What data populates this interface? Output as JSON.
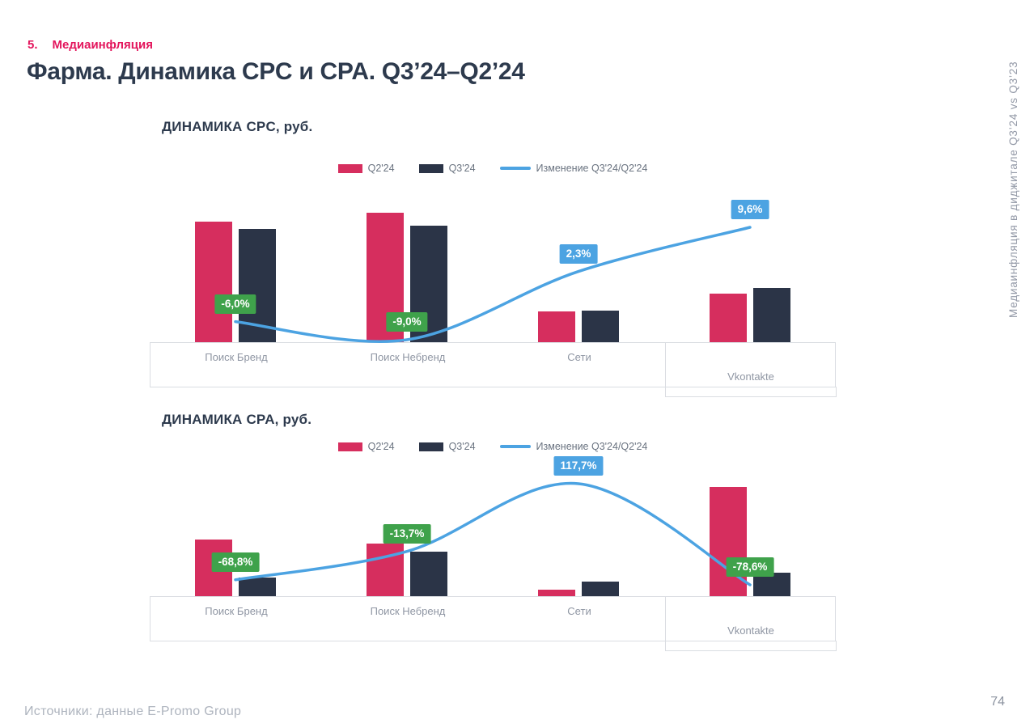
{
  "page": {
    "section_number": "5.",
    "section_title": "Медиаинфляция",
    "title": "Фарма. Динамика CPC и CPA. Q3’24–Q2’24",
    "side_note": "Медиаинфляция в диджитале Q3’24 vs Q3’23",
    "footer_source": "Источники: данные E-Promo Group",
    "page_number": "74"
  },
  "colors": {
    "accent_pink": "#D62E5E",
    "dark_navy": "#2B3447",
    "line_blue": "#4CA3E2",
    "label_green": "#3FA24B",
    "label_blue": "#4CA3E2",
    "section_pink": "#E3155C",
    "title_navy": "#2D3A4D",
    "axis_text_gray": "#8F96A3",
    "border_gray": "#DADDE2"
  },
  "legend": {
    "q2_label": "Q2'24",
    "q3_label": "Q3'24",
    "line_label": "Изменение Q3'24/Q2'24"
  },
  "chart_data": [
    {
      "type": "bar+line",
      "title": "ДИНАМИКА CPC, руб.",
      "xlabel": "",
      "ylabel": "руб.",
      "value_axis": "hidden",
      "legend_position": "top",
      "note": "Value axis hidden in source; bar values are relative estimates from bar heights.",
      "categories": [
        "Поиск Бренд",
        "Поиск Небренд",
        "Сети",
        "Vkontakte"
      ],
      "series": [
        {
          "name": "Q2'24",
          "values": [
            149,
            160,
            38,
            60
          ]
        },
        {
          "name": "Q3'24",
          "values": [
            140,
            144,
            39,
            67
          ]
        }
      ],
      "line_series": {
        "name": "Изменение Q3'24/Q2'24",
        "values": [
          -6.0,
          -9.0,
          2.3,
          9.6
        ],
        "labels": [
          "-6,0%",
          "-9,0%",
          "2,3%",
          "9,6%"
        ]
      }
    },
    {
      "type": "bar+line",
      "title": "ДИНАМИКА CPA, руб.",
      "xlabel": "",
      "ylabel": "руб.",
      "value_axis": "hidden",
      "legend_position": "top",
      "note": "Value axis hidden in source; bar values are relative estimates from bar heights.",
      "categories": [
        "Поиск Бренд",
        "Поиск Небренд",
        "Сети",
        "Vkontakte"
      ],
      "series": [
        {
          "name": "Q2'24",
          "values": [
            70,
            65,
            8,
            135
          ]
        },
        {
          "name": "Q3'24",
          "values": [
            23,
            55,
            18,
            29
          ]
        }
      ],
      "line_series": {
        "name": "Изменение Q3'24/Q2'24",
        "values": [
          -68.8,
          -13.7,
          117.7,
          -78.6
        ],
        "labels": [
          "-68,8%",
          "-13,7%",
          "117,7%",
          "-78,6%"
        ]
      }
    }
  ]
}
